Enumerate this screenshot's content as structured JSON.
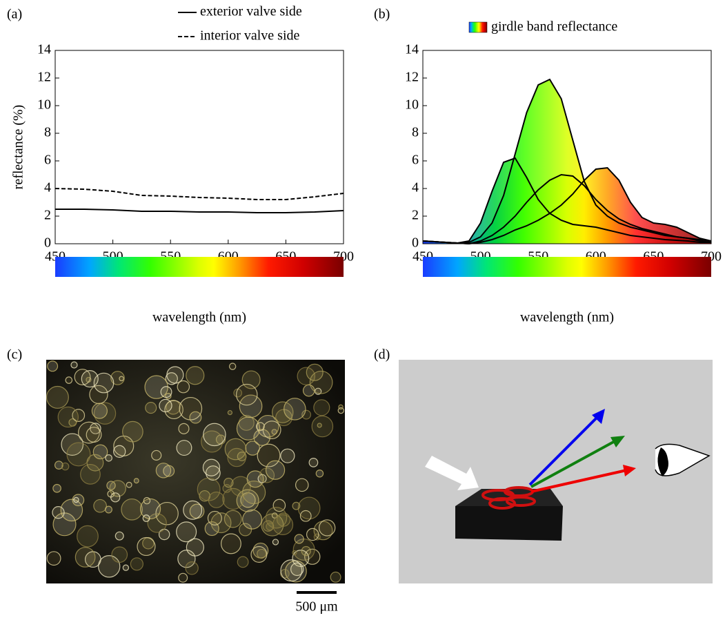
{
  "panel_labels": [
    "(a)",
    "(b)",
    "(c)",
    "(d)"
  ],
  "chart_data": [
    {
      "type": "line",
      "x_label": "wavelength (nm)",
      "y_label": "reflectance (%)",
      "xlim": [
        450,
        700
      ],
      "xticks": [
        450,
        500,
        550,
        600,
        650,
        700
      ],
      "ylim": [
        0,
        14
      ],
      "yticks": [
        0,
        2,
        4,
        6,
        8,
        10,
        12,
        14
      ],
      "x": [
        450,
        475,
        500,
        525,
        550,
        575,
        600,
        625,
        650,
        675,
        700
      ],
      "series": [
        {
          "name": "exterior valve side",
          "color": "#000000",
          "dash": "solid",
          "values": [
            2.5,
            2.5,
            2.45,
            2.35,
            2.35,
            2.3,
            2.3,
            2.25,
            2.25,
            2.3,
            2.4
          ]
        },
        {
          "name": "interior valve side",
          "color": "#000000",
          "dash": "dashed",
          "values": [
            4.0,
            3.95,
            3.8,
            3.5,
            3.45,
            3.35,
            3.3,
            3.2,
            3.2,
            3.4,
            3.65
          ]
        }
      ]
    },
    {
      "type": "line",
      "x_label": "wavelength (nm)",
      "legend_label": "girdle band reflectance",
      "area_fill": "spectrum",
      "xlim": [
        450,
        700
      ],
      "xticks": [
        450,
        500,
        550,
        600,
        650,
        700
      ],
      "ylim": [
        0,
        14
      ],
      "yticks": [
        0,
        2,
        4,
        6,
        8,
        10,
        12,
        14
      ],
      "x": [
        450,
        460,
        470,
        480,
        490,
        500,
        510,
        520,
        530,
        540,
        550,
        560,
        570,
        580,
        590,
        600,
        610,
        620,
        630,
        640,
        650,
        660,
        670,
        680,
        690,
        700
      ],
      "series": [
        {
          "color": "#000000",
          "dash": "solid",
          "values": [
            0.2,
            0.15,
            0.1,
            0.05,
            0.1,
            0.5,
            1.5,
            3.5,
            6.5,
            9.5,
            11.5,
            11.9,
            10.5,
            7.5,
            4.5,
            2.8,
            2.0,
            1.5,
            1.2,
            1.0,
            0.8,
            0.6,
            0.5,
            0.4,
            0.2,
            0.1
          ]
        },
        {
          "color": "#000000",
          "dash": "solid",
          "values": [
            0.2,
            0.15,
            0.1,
            0.05,
            0.2,
            1.5,
            3.8,
            5.9,
            6.2,
            4.8,
            3.2,
            2.2,
            1.7,
            1.4,
            1.3,
            1.2,
            1.0,
            0.8,
            0.6,
            0.5,
            0.4,
            0.3,
            0.25,
            0.2,
            0.1,
            0.1
          ]
        },
        {
          "color": "#000000",
          "dash": "solid",
          "values": [
            0.2,
            0.15,
            0.1,
            0.05,
            0.0,
            0.2,
            0.6,
            1.2,
            2.0,
            3.0,
            3.9,
            4.6,
            5.0,
            4.9,
            4.2,
            3.2,
            2.4,
            1.8,
            1.4,
            1.1,
            0.9,
            0.7,
            0.5,
            0.4,
            0.3,
            0.2
          ]
        },
        {
          "color": "#000000",
          "dash": "solid",
          "values": [
            0.2,
            0.15,
            0.1,
            0.05,
            0.0,
            0.1,
            0.3,
            0.6,
            1.0,
            1.3,
            1.7,
            2.2,
            2.8,
            3.6,
            4.6,
            5.4,
            5.5,
            4.6,
            3.0,
            1.9,
            1.5,
            1.4,
            1.2,
            0.8,
            0.4,
            0.2
          ]
        }
      ]
    }
  ],
  "scale_bar": "500 μm"
}
